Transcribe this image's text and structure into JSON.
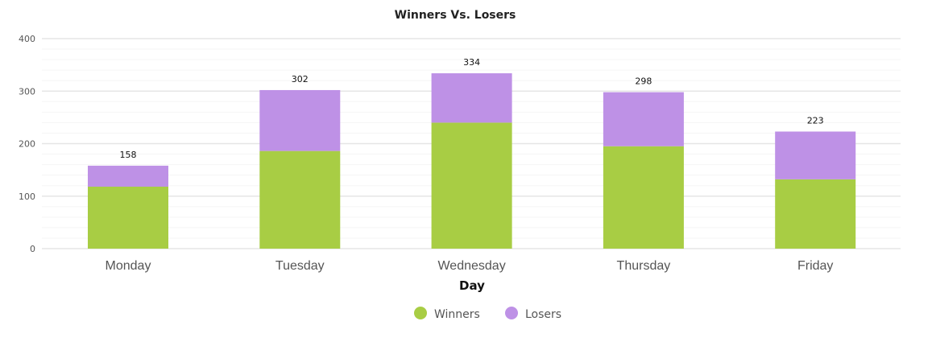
{
  "chart_data": {
    "type": "bar",
    "stacked": true,
    "title": "Winners Vs. Losers",
    "xlabel": "Day",
    "ylabel": "",
    "categories": [
      "Monday",
      "Tuesday",
      "Wednesday",
      "Thursday",
      "Friday"
    ],
    "series": [
      {
        "name": "Winners",
        "color": "#a8cd44",
        "values": [
          118,
          186,
          240,
          195,
          132
        ]
      },
      {
        "name": "Losers",
        "color": "#be91e6",
        "values": [
          40,
          116,
          94,
          103,
          91
        ]
      }
    ],
    "totals": [
      "158",
      "302",
      "334",
      "298",
      "223"
    ],
    "ylim": [
      0,
      400
    ],
    "yticks": [
      "0",
      "100",
      "200",
      "300",
      "400"
    ],
    "grid": true,
    "legend_position": "bottom"
  }
}
